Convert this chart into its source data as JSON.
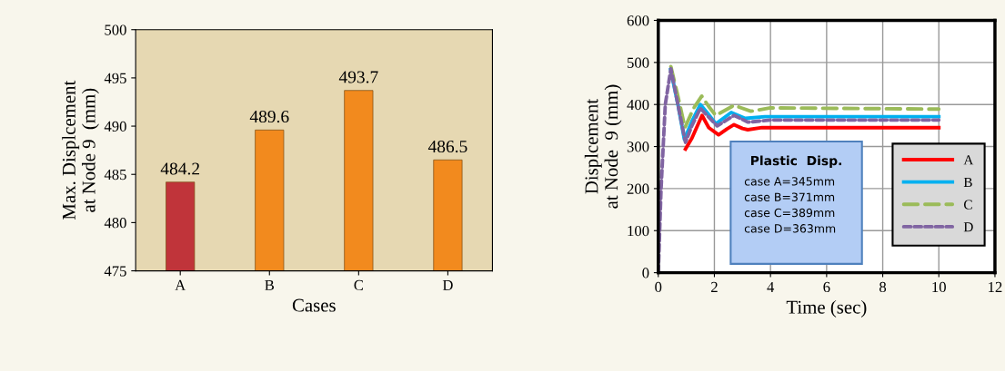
{
  "chart_data": [
    {
      "type": "bar",
      "categories": [
        "A",
        "B",
        "C",
        "D"
      ],
      "values": [
        484.2,
        489.6,
        493.7,
        486.5
      ],
      "colors": [
        "#c0343a",
        "#f28a1e",
        "#f28a1e",
        "#f28a1e"
      ],
      "data_labels": true,
      "xlabel": "Cases",
      "ylabel": "Max. Displcement\nat Node 9  (mm)",
      "ylim": [
        475,
        500
      ],
      "yticks": [
        475,
        480,
        485,
        490,
        495,
        500
      ],
      "grid": false
    },
    {
      "type": "line",
      "xlabel": "Time (sec)",
      "ylabel": "Displcement\nat Node  9 (mm)",
      "xlim": [
        0,
        12
      ],
      "xticks": [
        0,
        2,
        4,
        6,
        8,
        10,
        12
      ],
      "ylim": [
        0,
        600
      ],
      "yticks": [
        0,
        100,
        200,
        300,
        400,
        500,
        600
      ],
      "grid": true,
      "legend": "bottom right",
      "marker": "none",
      "annotations": [
        "Plastic  Disp.",
        "case A=345mm",
        "case B=371mm",
        "case C=389mm",
        "case D=363mm"
      ],
      "series": [
        {
          "name": "A",
          "color": "#ff0000",
          "line_style": "solid",
          "x": [
            0.97,
            1.2,
            1.56,
            1.8,
            2.15,
            2.45,
            2.7,
            3.0,
            3.19,
            3.7,
            4,
            10
          ],
          "values": [
            294,
            320,
            374,
            345,
            328,
            342,
            352,
            343,
            340,
            345,
            345,
            345
          ]
        },
        {
          "name": "B",
          "color": "#00b0f0",
          "line_style": "solid",
          "x": [
            0.44,
            0.7,
            0.93,
            1.2,
            1.5,
            1.75,
            2.05,
            2.6,
            3.1,
            3.8,
            10
          ],
          "values": [
            483,
            400,
            317,
            360,
            400,
            380,
            354,
            381,
            367,
            371,
            371
          ]
        },
        {
          "name": "C",
          "color": "#9bbb59",
          "line_style": "dashed",
          "x": [
            0.45,
            0.7,
            0.95,
            1.25,
            1.55,
            1.8,
            2.05,
            2.7,
            3.3,
            4,
            10
          ],
          "values": [
            490,
            420,
            345,
            390,
            420,
            395,
            374,
            398,
            384,
            392,
            389
          ]
        },
        {
          "name": "D",
          "color": "#8064a2",
          "line_style": "dotted",
          "x": [
            0,
            0.1,
            0.25,
            0.45,
            0.7,
            0.97,
            1.2,
            1.5,
            1.8,
            2.1,
            2.7,
            3.2,
            4,
            10
          ],
          "values": [
            0,
            200,
            400,
            485,
            400,
            310,
            350,
            391,
            370,
            349,
            374,
            358,
            363,
            363
          ]
        }
      ]
    }
  ]
}
